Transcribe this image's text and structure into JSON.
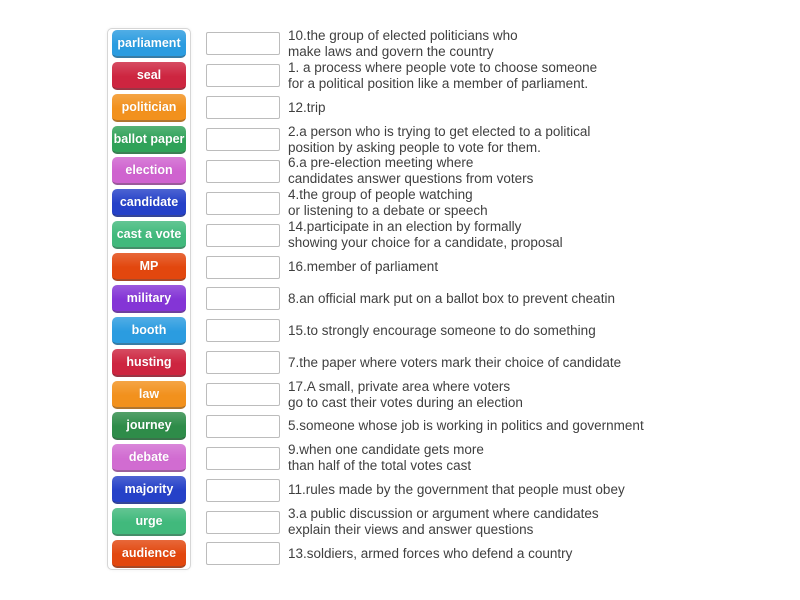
{
  "activity": {
    "type": "match-up",
    "panel_border_color": "#d6d6d6",
    "slot_border_color": "#bcbcbc",
    "text_color": "#3f3f3f",
    "pairs": [
      {
        "keyword": "parliament",
        "color": "#2b9ce0",
        "definition": "10.the group of elected politicians who\nmake laws and govern the country"
      },
      {
        "keyword": "seal",
        "color": "#cd2540",
        "definition": "1. a process where people vote to choose someone\nfor a political position like a member of parliament."
      },
      {
        "keyword": "politician",
        "color": "#f2911d",
        "definition": "12.trip"
      },
      {
        "keyword": "ballot paper",
        "color": "#30a259",
        "definition": "2.a person who is trying to get elected to a political\nposition by asking people to vote for them."
      },
      {
        "keyword": "election",
        "color": "#cf63cf",
        "definition": "6.a pre-election meeting where\ncandidates answer questions from voters"
      },
      {
        "keyword": "candidate",
        "color": "#2541c8",
        "definition": "4.the group of people watching\nor listening to a debate or speech"
      },
      {
        "keyword": "cast a vote",
        "color": "#41b97c",
        "definition": "14.participate in an election by formally\nshowing your choice for a candidate, proposal"
      },
      {
        "keyword": "MP",
        "color": "#e2470e",
        "definition": "16.member of parliament"
      },
      {
        "keyword": "military",
        "color": "#8435d6",
        "definition": "8.an official mark put on a ballot box to prevent cheatin"
      },
      {
        "keyword": "booth",
        "color": "#2b9ce0",
        "definition": "15.to strongly encourage someone to do something"
      },
      {
        "keyword": "husting",
        "color": "#cd2540",
        "definition": "7.the paper where voters mark their choice of candidate"
      },
      {
        "keyword": "law",
        "color": "#f2911d",
        "definition": "17.A small, private area where voters\ngo to cast their votes during an election"
      },
      {
        "keyword": "journey",
        "color": "#2e8c49",
        "definition": "5.someone whose job is working in politics and government"
      },
      {
        "keyword": "debate",
        "color": "#d16cd1",
        "definition": "9.when one candidate gets more\nthan half of the total votes cast"
      },
      {
        "keyword": "majority",
        "color": "#2541c8",
        "definition": "11.rules made by the government that people must obey"
      },
      {
        "keyword": "urge",
        "color": "#41b97c",
        "definition": "3.a public discussion or argument where candidates\nexplain their views and answer questions"
      },
      {
        "keyword": "audience",
        "color": "#e2470e",
        "definition": "13.soldiers, armed forces who defend a country"
      }
    ]
  }
}
